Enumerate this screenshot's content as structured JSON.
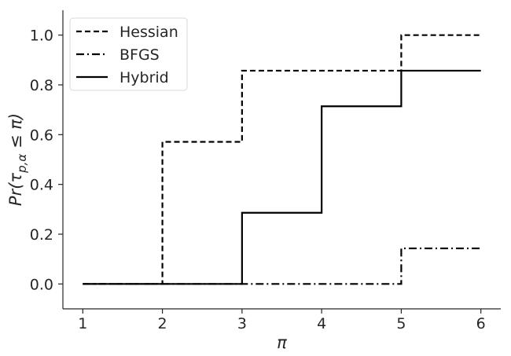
{
  "chart_data": {
    "type": "line",
    "step": "post",
    "title": "",
    "xlabel": "π",
    "ylabel": "Pr(τ_{p,α} ≤ π)",
    "xlim": [
      0.75,
      6.25
    ],
    "ylim": [
      -0.1,
      1.1
    ],
    "xticks": [
      1,
      2,
      3,
      4,
      5,
      6
    ],
    "yticks": [
      0.0,
      0.2,
      0.4,
      0.6,
      0.8,
      1.0
    ],
    "xtick_labels": [
      "1",
      "2",
      "3",
      "4",
      "5",
      "6"
    ],
    "ytick_labels": [
      "0.0",
      "0.2",
      "0.4",
      "0.6",
      "0.8",
      "1.0"
    ],
    "grid": false,
    "legend_position": "top-left",
    "x": [
      1,
      2,
      3,
      4,
      5,
      6
    ],
    "series": [
      {
        "name": "Hessian",
        "style": "dashed",
        "color": "#000000",
        "values": [
          0.0,
          0.571,
          0.857,
          0.857,
          1.0,
          1.0
        ]
      },
      {
        "name": "BFGS",
        "style": "dashdot",
        "color": "#000000",
        "values": [
          0.0,
          0.0,
          0.0,
          0.0,
          0.143,
          0.143
        ]
      },
      {
        "name": "Hybrid",
        "style": "solid",
        "color": "#000000",
        "values": [
          0.0,
          0.0,
          0.286,
          0.714,
          0.857,
          0.857
        ]
      }
    ]
  }
}
